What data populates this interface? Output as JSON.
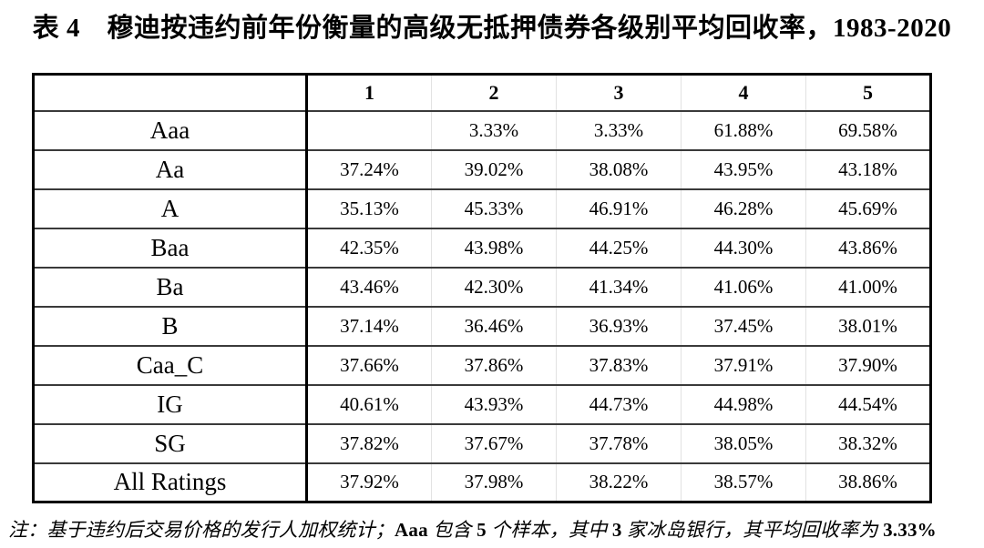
{
  "title": "表 4　穆迪按违约前年份衡量的高级无抵押债券各级别平均回收率，1983-2020",
  "colors": {
    "background": "#ffffff",
    "text": "#000000",
    "outer_border": "#000000",
    "row_rule": "#3a3a3a",
    "faint_column_rule": "#e2e2e2"
  },
  "table": {
    "corner_label": "",
    "col_headers": [
      "1",
      "2",
      "3",
      "4",
      "5"
    ],
    "rows": [
      {
        "label": "Aaa",
        "values": [
          "",
          "3.33%",
          "3.33%",
          "61.88%",
          "69.58%"
        ]
      },
      {
        "label": "Aa",
        "values": [
          "37.24%",
          "39.02%",
          "38.08%",
          "43.95%",
          "43.18%"
        ]
      },
      {
        "label": "A",
        "values": [
          "35.13%",
          "45.33%",
          "46.91%",
          "46.28%",
          "45.69%"
        ]
      },
      {
        "label": "Baa",
        "values": [
          "42.35%",
          "43.98%",
          "44.25%",
          "44.30%",
          "43.86%"
        ]
      },
      {
        "label": "Ba",
        "values": [
          "43.46%",
          "42.30%",
          "41.34%",
          "41.06%",
          "41.00%"
        ]
      },
      {
        "label": "B",
        "values": [
          "37.14%",
          "36.46%",
          "36.93%",
          "37.45%",
          "38.01%"
        ]
      },
      {
        "label": "Caa_C",
        "values": [
          "37.66%",
          "37.86%",
          "37.83%",
          "37.91%",
          "37.90%"
        ]
      },
      {
        "label": "IG",
        "values": [
          "40.61%",
          "43.93%",
          "44.73%",
          "44.98%",
          "44.54%"
        ]
      },
      {
        "label": "SG",
        "values": [
          "37.82%",
          "37.67%",
          "37.78%",
          "38.05%",
          "38.32%"
        ]
      },
      {
        "label": "All Ratings",
        "values": [
          "37.92%",
          "37.98%",
          "38.22%",
          "38.57%",
          "38.86%"
        ]
      }
    ]
  },
  "note": {
    "segments": [
      {
        "text": "注：基于违约后交易价格的发行人加权统计；",
        "bold": false
      },
      {
        "text": "Aaa",
        "bold": true
      },
      {
        "text": " 包含 ",
        "bold": false
      },
      {
        "text": "5",
        "bold": true
      },
      {
        "text": " 个样本，其中 ",
        "bold": false
      },
      {
        "text": "3",
        "bold": true
      },
      {
        "text": " 家冰岛银行，其平均回收率为 ",
        "bold": false
      },
      {
        "text": "3.33%",
        "bold": true
      }
    ]
  }
}
